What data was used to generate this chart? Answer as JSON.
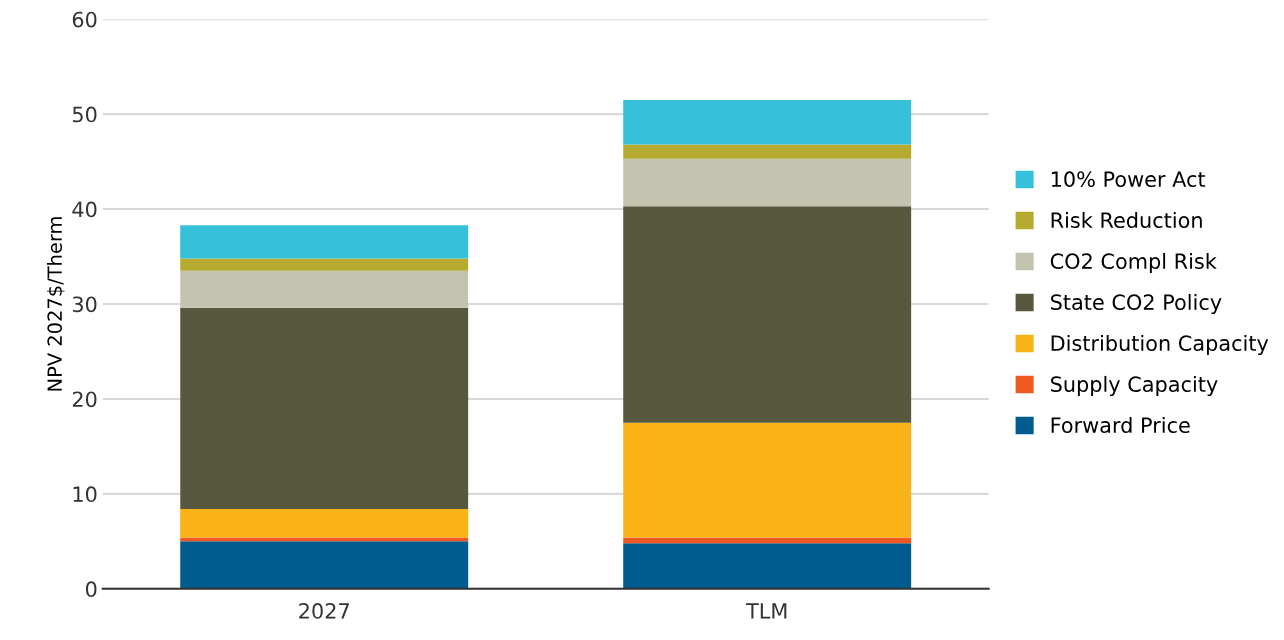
{
  "chart_data": {
    "type": "bar",
    "stacked": true,
    "ylabel": "NPV 2027$/Therm",
    "categories": [
      "2027",
      "TLM"
    ],
    "series": [
      {
        "name": "Forward Price",
        "color": "#005b8e",
        "values": [
          5.0,
          4.8
        ]
      },
      {
        "name": "Supply Capacity",
        "color": "#f05a22",
        "values": [
          0.4,
          0.6
        ]
      },
      {
        "name": "Distribution Capacity",
        "color": "#f9b316",
        "values": [
          3.0,
          12.1
        ]
      },
      {
        "name": "State CO2 Policy",
        "color": "#58583f",
        "values": [
          21.2,
          22.8
        ]
      },
      {
        "name": "CO2 Compl Risk",
        "color": "#c3c3b0",
        "values": [
          3.9,
          5.0
        ]
      },
      {
        "name": "Risk Reduction",
        "color": "#b6ab30",
        "values": [
          1.3,
          1.5
        ]
      },
      {
        "name": "10% Power Act",
        "color": "#36c1da",
        "values": [
          3.5,
          4.7
        ]
      }
    ],
    "ylim": [
      0,
      60
    ],
    "yticks": [
      0,
      10,
      20,
      30,
      40,
      50,
      60
    ],
    "grid": "y",
    "legend": "right"
  }
}
